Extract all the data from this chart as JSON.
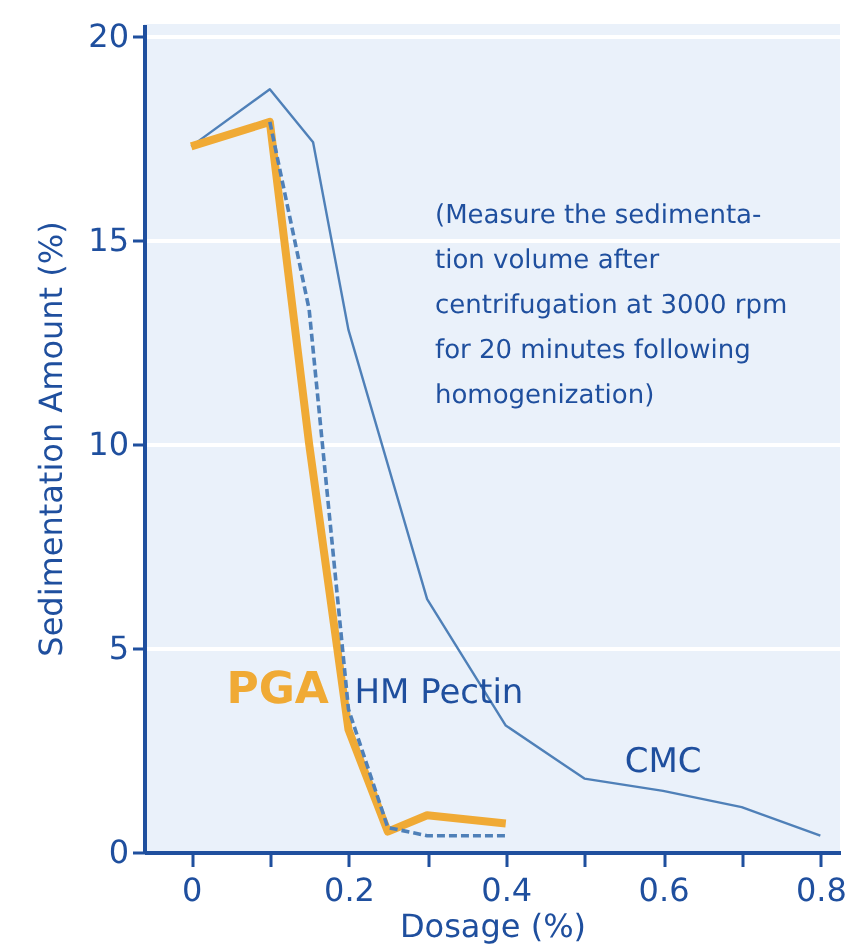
{
  "chart_data": {
    "type": "line",
    "xlabel": "Dosage (%)",
    "ylabel": "Sedimentation Amount (%)",
    "xlim": [
      -0.06,
      0.825
    ],
    "ylim": [
      0,
      20.3
    ],
    "xticks": [
      0,
      {
        "value": 0.1,
        "label": null
      },
      0.2,
      {
        "value": 0.3,
        "label": null
      },
      0.4,
      {
        "value": 0.5,
        "label": null
      },
      0.6,
      {
        "value": 0.7,
        "label": null
      },
      0.8
    ],
    "yticks": [
      0,
      5,
      10,
      15,
      20
    ],
    "grid": "y",
    "marker": "none",
    "annotations": [
      "(Measure the sedimenta-\ntion volume after\ncentrifugation at 3000 rpm\nfor 20 minutes following\nhomogenization)"
    ],
    "series": [
      {
        "name": "CMC",
        "color": "#4f80b8",
        "line_style": "solid",
        "x": [
          0,
          0.1,
          0.155,
          0.2,
          0.3,
          0.4,
          0.5,
          0.6,
          0.7,
          0.8
        ],
        "values": [
          17.3,
          18.7,
          17.4,
          12.8,
          6.2,
          3.1,
          1.8,
          1.5,
          1.1,
          0.4
        ]
      },
      {
        "name": "PGA",
        "color": "#f0aa35",
        "line_style": "solid",
        "x": [
          0,
          0.1,
          0.15,
          0.2,
          0.25,
          0.3,
          0.4
        ],
        "values": [
          17.3,
          17.9,
          10.0,
          3.0,
          0.5,
          0.9,
          0.7
        ]
      },
      {
        "name": "HM Pectin",
        "color": "#4f80b8",
        "line_style": "dashed",
        "x": [
          0.1,
          0.15,
          0.2,
          0.25,
          0.3,
          0.4
        ],
        "values": [
          17.9,
          13.3,
          3.5,
          0.6,
          0.4,
          0.4
        ]
      }
    ]
  }
}
